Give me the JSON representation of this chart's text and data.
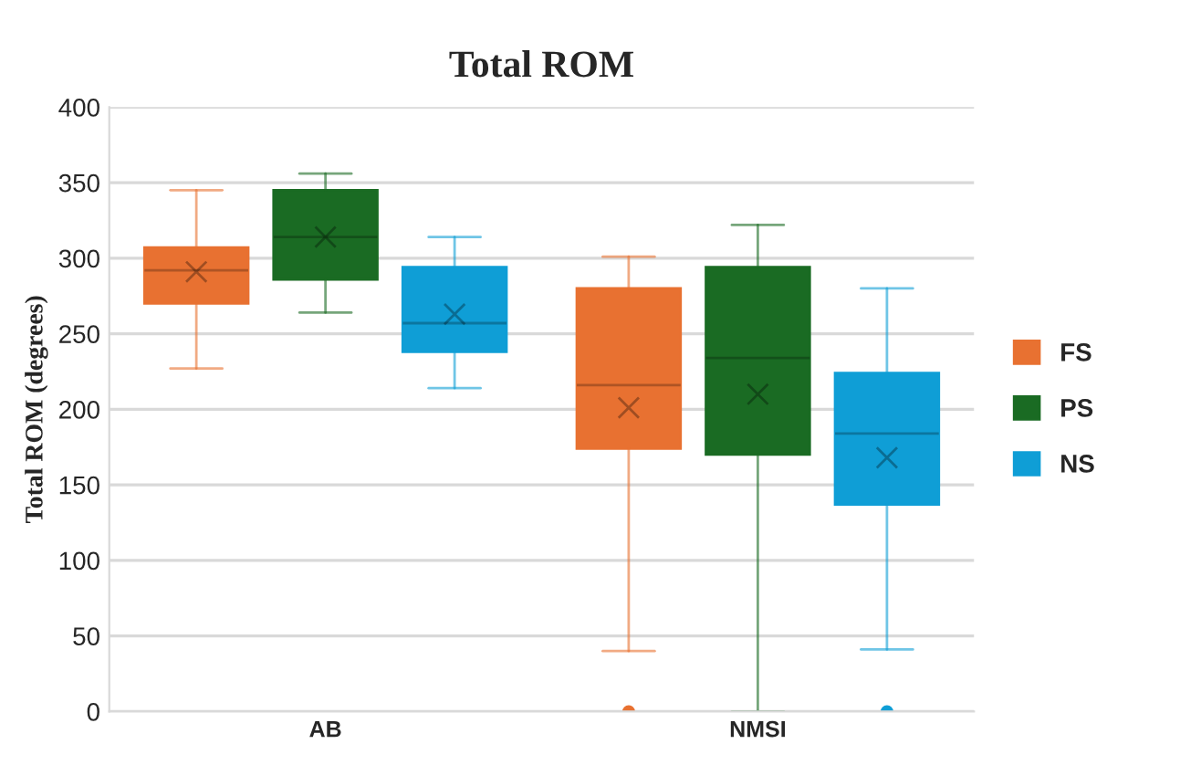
{
  "chart_data": {
    "type": "box",
    "title": "Total ROM",
    "ylabel": "Total ROM (degrees)",
    "categories": [
      "AB",
      "NMSI"
    ],
    "series": [
      {
        "name": "FS",
        "color": "#e87131",
        "boxes": [
          {
            "low": 227,
            "q1": 270,
            "median": 292,
            "q3": 307,
            "high": 345,
            "mean": 291
          },
          {
            "low": 40,
            "q1": 174,
            "median": 216,
            "q3": 280,
            "high": 301,
            "mean": 201,
            "outliers": [
              0
            ]
          }
        ]
      },
      {
        "name": "PS",
        "color": "#1a6b23",
        "boxes": [
          {
            "low": 264,
            "q1": 286,
            "median": 314,
            "q3": 345,
            "high": 356,
            "mean": 314
          },
          {
            "low": 0,
            "q1": 170,
            "median": 234,
            "q3": 294,
            "high": 322,
            "mean": 210
          }
        ]
      },
      {
        "name": "NS",
        "color": "#0f9ed6",
        "boxes": [
          {
            "low": 214,
            "q1": 238,
            "median": 257,
            "q3": 294,
            "high": 314,
            "mean": 263
          },
          {
            "low": 41,
            "q1": 137,
            "median": 184,
            "q3": 224,
            "high": 280,
            "mean": 168,
            "outliers": [
              0
            ]
          }
        ]
      }
    ],
    "ylim": [
      0,
      400
    ],
    "yticks": [
      0,
      50,
      100,
      150,
      200,
      250,
      300,
      350,
      400
    ],
    "grid": "y",
    "legend": "right"
  }
}
